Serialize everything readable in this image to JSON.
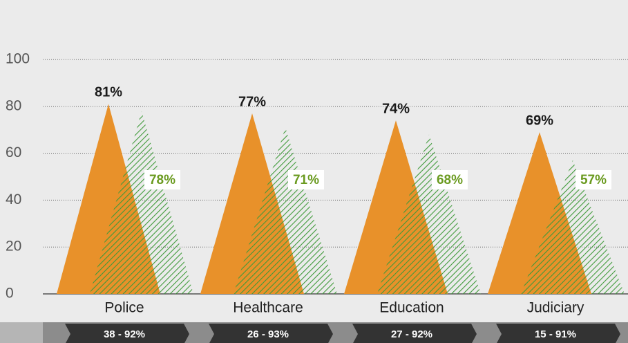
{
  "chart_data": {
    "type": "triangle",
    "categories": [
      "Police",
      "Healthcare",
      "Education",
      "Judiciary"
    ],
    "ranges": [
      "38 - 92%",
      "26 - 93%",
      "27 - 92%",
      "15 - 91%"
    ],
    "series": [
      {
        "color": "#e8912a",
        "values": [
          81,
          77,
          74,
          69
        ],
        "value_labels": [
          "81%",
          "77%",
          "74%",
          "69%"
        ]
      },
      {
        "color": "#3f9a3a",
        "label_color": "#6a9a1f",
        "hatched": true,
        "values": [
          78,
          71,
          68,
          57
        ],
        "value_labels": [
          "78%",
          "71%",
          "68%",
          "57%"
        ]
      }
    ],
    "ylim": [
      0,
      100
    ],
    "yticks": [
      0,
      20,
      40,
      60,
      80,
      100
    ],
    "grid": true
  }
}
